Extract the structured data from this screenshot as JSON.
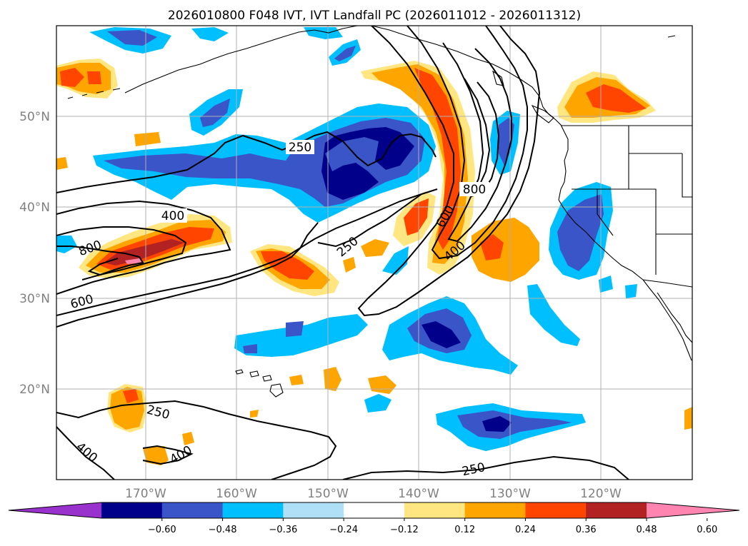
{
  "title": "2026010800 F048 IVT, IVT Landfall PC (2026011012 - 2026011312)",
  "longitude_labels": [
    "170°W",
    "160°W",
    "150°W",
    "140°W",
    "130°W",
    "120°W"
  ],
  "latitude_labels": [
    "50°N",
    "40°N",
    "30°N",
    "20°N"
  ],
  "contour_labels": {
    "c250_north": "250",
    "c400_west": "400",
    "c800_west": "800",
    "c600_west": "600",
    "c250_center": "250",
    "c800_coast": "800",
    "c600_coast": "600",
    "c400_coast": "400",
    "c250_south": "250",
    "c400_southwest": "400",
    "c400_south": "400",
    "c250_bottom": "250"
  },
  "colorbar": {
    "levels": [
      -0.6,
      -0.48,
      -0.36,
      -0.24,
      -0.12,
      0.12,
      0.24,
      0.36,
      0.48,
      0.6
    ],
    "tick_labels": [
      "−0.60",
      "−0.48",
      "−0.36",
      "−0.24",
      "−0.12",
      "0.12",
      "0.24",
      "0.36",
      "0.48",
      "0.60"
    ],
    "colors": [
      "#9932cc",
      "#00008b",
      "#3a55c8",
      "#00bfff",
      "#b0e0f8",
      "#ffffff",
      "#ffe680",
      "#ffa500",
      "#ff4500",
      "#b22222",
      "#ff85b0"
    ],
    "extend": "both"
  }
}
